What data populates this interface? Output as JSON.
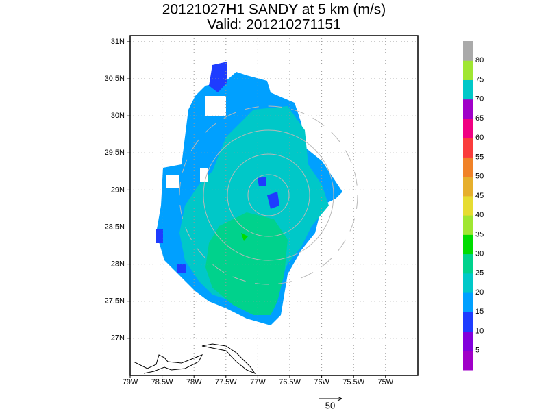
{
  "title": "20121027H1 SANDY at 5 km (m/s)",
  "subtitle": "Valid: 201210271151",
  "x_axis": {
    "labels": [
      "79W",
      "78.5W",
      "78W",
      "77.5W",
      "77W",
      "76.5W",
      "76W",
      "75.5W",
      "75W"
    ]
  },
  "y_axis": {
    "labels": [
      "31N",
      "30.5N",
      "30N",
      "29.5N",
      "29N",
      "28.5N",
      "28N",
      "27.5N",
      "27N"
    ]
  },
  "colorbar": {
    "colors": [
      "#a000c8",
      "#8200dc",
      "#1e3cff",
      "#00a0ff",
      "#00c8c8",
      "#00d28c",
      "#00dc00",
      "#a0e632",
      "#e6dc32",
      "#e6af2d",
      "#f08228",
      "#fa3c3c",
      "#f00082",
      "#a000c8",
      "#00c8c8",
      "#a0e632",
      "#aaaaaa"
    ],
    "labels": [
      "5",
      "10",
      "15",
      "20",
      "25",
      "30",
      "35",
      "40",
      "45",
      "50",
      "55",
      "60",
      "65",
      "70",
      "75",
      "80"
    ]
  },
  "vector_scale": {
    "label": "50"
  }
}
